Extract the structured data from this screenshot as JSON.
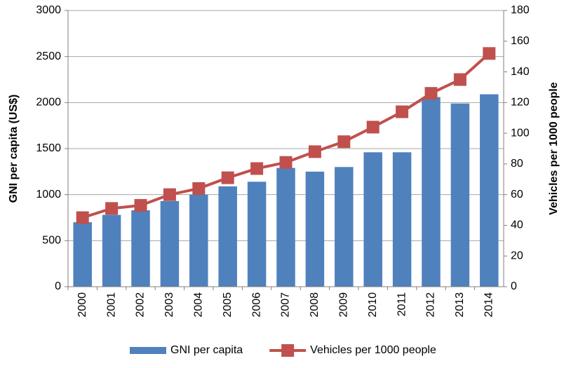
{
  "chart_data": {
    "type": "combo",
    "categories": [
      "2000",
      "2001",
      "2002",
      "2003",
      "2004",
      "2005",
      "2006",
      "2007",
      "2008",
      "2009",
      "2010",
      "2011",
      "2012",
      "2013",
      "2014"
    ],
    "series": [
      {
        "name": "GNI per capita",
        "type": "bar",
        "color": "#4f81bd",
        "values": [
          700,
          780,
          830,
          930,
          1000,
          1090,
          1140,
          1290,
          1250,
          1300,
          1460,
          1460,
          2060,
          1990,
          2090
        ]
      },
      {
        "name": "Vehicles per 1000 people",
        "type": "line",
        "axis": "y2",
        "color": "#c0504d",
        "values": [
          45,
          51,
          53,
          60,
          64,
          71,
          77,
          81,
          88,
          94.5,
          104,
          114,
          126,
          135,
          152
        ]
      }
    ],
    "ylabel": "GNI per capita (US$)",
    "y2label": "Vehicles per 1000 people",
    "ylim": [
      0,
      3000
    ],
    "yticks": [
      0,
      500,
      1000,
      1500,
      2000,
      2500,
      3000
    ],
    "y2lim": [
      0,
      180
    ],
    "y2ticks": [
      0,
      20,
      40,
      60,
      80,
      100,
      120,
      140,
      160,
      180
    ],
    "grid": true,
    "legend": "bottom"
  }
}
